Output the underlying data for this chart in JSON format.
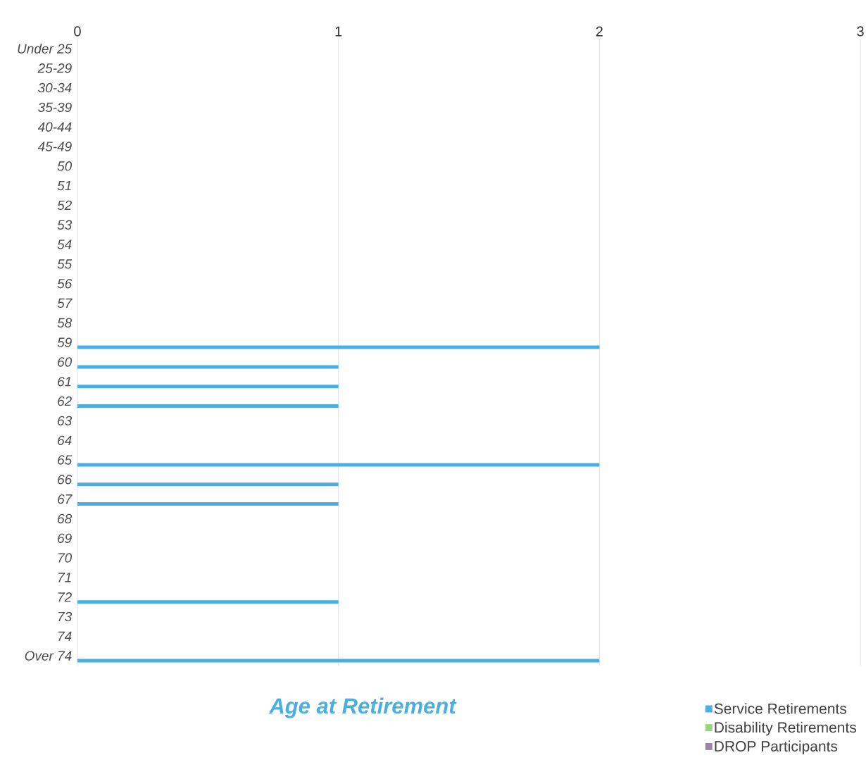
{
  "chart_data": {
    "type": "bar",
    "orientation": "horizontal",
    "title": "Age at Retirement",
    "categories": [
      "Under 25",
      "25-29",
      "30-34",
      "35-39",
      "40-44",
      "45-49",
      "50",
      "51",
      "52",
      "53",
      "54",
      "55",
      "56",
      "57",
      "58",
      "59",
      "60",
      "61",
      "62",
      "63",
      "64",
      "65",
      "66",
      "67",
      "68",
      "69",
      "70",
      "71",
      "72",
      "73",
      "74",
      "Over 74"
    ],
    "series": [
      {
        "name": "Service Retirements",
        "color": "#4aaee0",
        "values": [
          0,
          0,
          0,
          0,
          0,
          0,
          0,
          0,
          0,
          0,
          0,
          0,
          0,
          0,
          0,
          2,
          1,
          1,
          1,
          0,
          0,
          2,
          1,
          1,
          0,
          0,
          0,
          0,
          1,
          0,
          0,
          2
        ]
      },
      {
        "name": "Disability Retirements",
        "color": "#9ad47a",
        "values": [
          0,
          0,
          0,
          0,
          0,
          0,
          0,
          0,
          0,
          0,
          0,
          0,
          0,
          0,
          0,
          0,
          0,
          0,
          0,
          0,
          0,
          0,
          0,
          0,
          0,
          0,
          0,
          0,
          0,
          0,
          0,
          0
        ]
      },
      {
        "name": "DROP Participants",
        "color": "#9e86a8",
        "values": [
          0,
          0,
          0,
          0,
          0,
          0,
          0,
          0,
          0,
          0,
          0,
          0,
          0,
          0,
          0,
          0,
          0,
          0,
          0,
          0,
          0,
          0,
          0,
          0,
          0,
          0,
          0,
          0,
          0,
          0,
          0,
          0
        ]
      }
    ],
    "xlim": [
      0,
      3
    ],
    "xticks": [
      0,
      1,
      2,
      3
    ],
    "grid": "x",
    "legend": "bottom right"
  }
}
